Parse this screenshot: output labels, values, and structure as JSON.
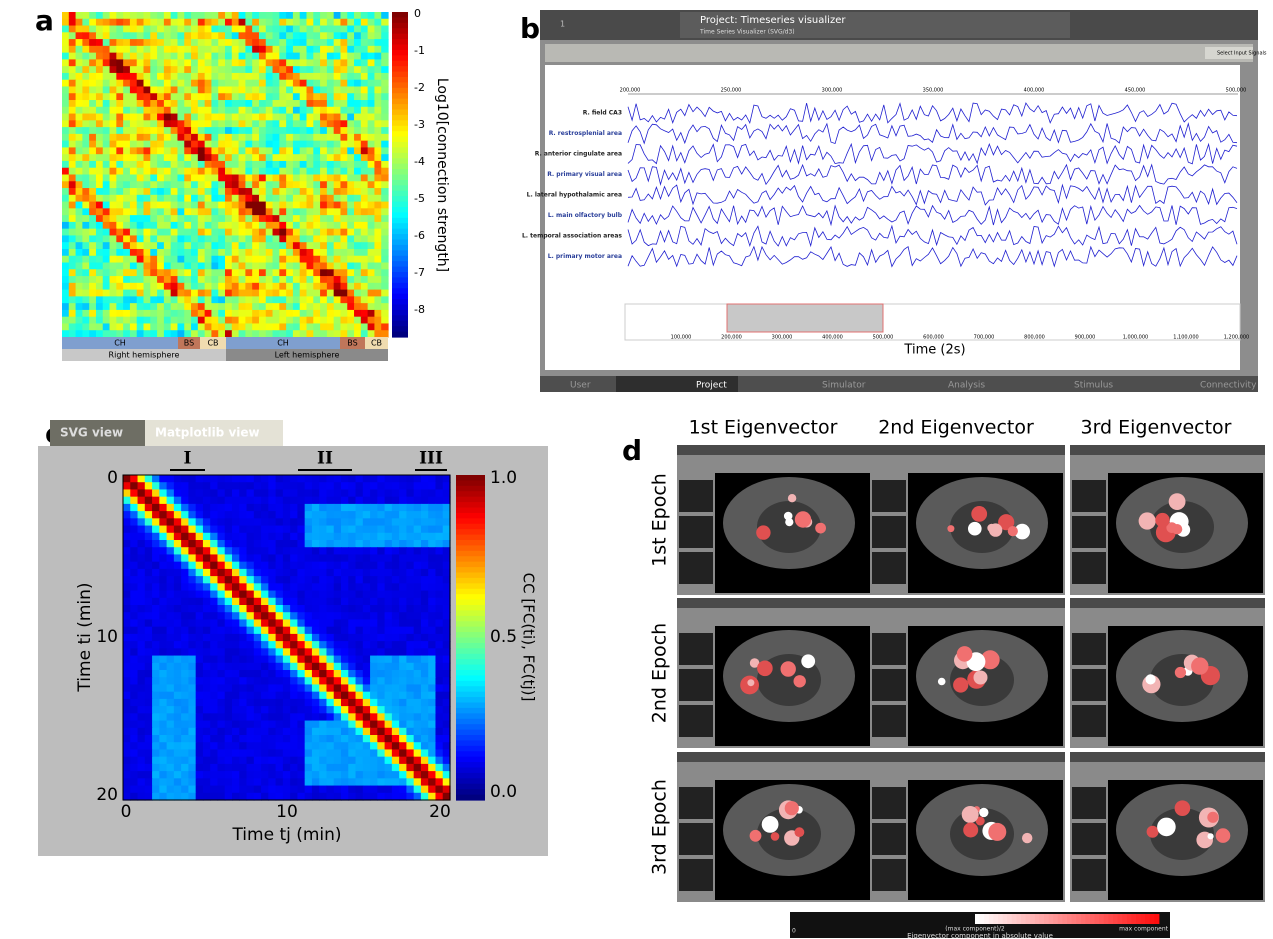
{
  "panels": {
    "a": {
      "label": "a",
      "colorbar_label": "Log10[connection strength]",
      "colorbar_ticks": [
        "0",
        "-1",
        "-2",
        "-3",
        "-4",
        "-5",
        "-6",
        "-7",
        "-8"
      ],
      "regions": [
        "CH",
        "BS",
        "CB",
        "CH",
        "BS",
        "CB"
      ],
      "hemispheres": [
        "Right hemisphere",
        "Left hemisphere"
      ]
    },
    "b": {
      "label": "b",
      "tab_number": "1",
      "project_title": "Project: Timeseries visualizer",
      "subtitle": "Time Series Visualizer (SVG/d3)",
      "button": "Select Input Signals",
      "top_ticks": [
        "200,000",
        "250,000",
        "300,000",
        "350,000",
        "400,000",
        "450,000",
        "500,000"
      ],
      "signals": [
        "R. field CA3",
        "R. restrosplenial area",
        "R. anterior cingulate area",
        "R. primary visual area",
        "L. lateral hypothalamic area",
        "L. main olfactory bulb",
        "L. temporal association areas",
        "L. primary motor area"
      ],
      "bottom_ticks": [
        "100,000",
        "200,000",
        "300,000",
        "400,000",
        "500,000",
        "600,000",
        "700,000",
        "800,000",
        "900,000",
        "1,000,000",
        "1,100,000",
        "1,200,000"
      ],
      "xlabel": "Time (2s)",
      "tabs": [
        "User",
        "Project",
        "Simulator",
        "Analysis",
        "Stimulus",
        "Connectivity"
      ]
    },
    "c": {
      "label": "c",
      "tabs": [
        "SVG view",
        "Matplotlib view"
      ],
      "epochs": [
        "I",
        "II",
        "III"
      ],
      "yticks": [
        "0",
        "10",
        "20"
      ],
      "xticks": [
        "0",
        "10",
        "20"
      ],
      "ylabel": "Time ti (min)",
      "xlabel": "Time tj (min)",
      "colorbar_ticks": [
        "1.0",
        "0.5",
        "0.0"
      ],
      "colorbar_label": "CC [FC(ti), FC(tj)]"
    },
    "d": {
      "label": "d",
      "columns": [
        "1st Eigenvector",
        "2nd Eigenvector",
        "3rd Eigenvector"
      ],
      "rows": [
        "1st Epoch",
        "2nd Epoch",
        "3rd Epoch"
      ],
      "colorbar_left": "0",
      "colorbar_mid": "(max component)/2",
      "colorbar_right": "max component",
      "colorbar_label": "Eigenvector component in absolute value"
    }
  }
}
